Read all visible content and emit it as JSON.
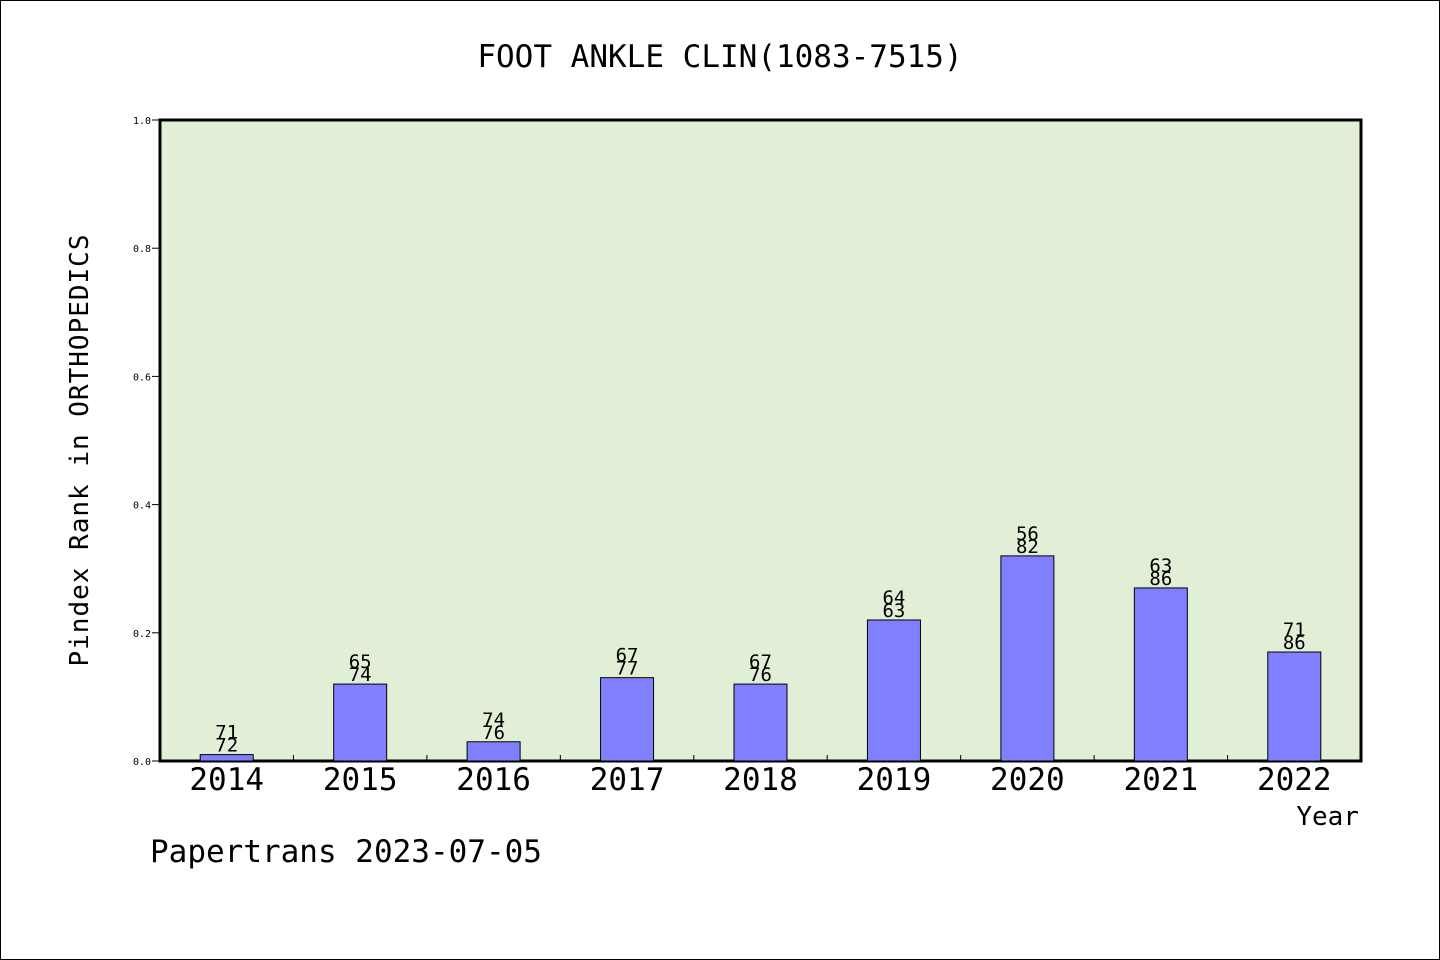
{
  "chart_data": {
    "type": "bar",
    "title": "FOOT ANKLE CLIN(1083-7515)",
    "xlabel": "Year",
    "ylabel": "Pindex Rank in ORTHOPEDICS",
    "categories": [
      "2014",
      "2015",
      "2016",
      "2017",
      "2018",
      "2019",
      "2020",
      "2021",
      "2022"
    ],
    "values": [
      0.01,
      0.12,
      0.03,
      0.13,
      0.12,
      0.22,
      0.32,
      0.27,
      0.17
    ],
    "bar_labels_top": [
      "71",
      "65",
      "74",
      "67",
      "67",
      "64",
      "56",
      "63",
      "71"
    ],
    "bar_labels_bottom": [
      "72",
      "74",
      "76",
      "77",
      "76",
      "63",
      "82",
      "86",
      "86"
    ],
    "ylim": [
      0,
      1.0
    ],
    "yticks": [
      "0.0",
      "0.2",
      "0.4",
      "0.6",
      "0.8",
      "1.0"
    ],
    "grid": false,
    "colors": {
      "plot_bg": "#e2efd7",
      "bar": "#8080ff",
      "bar_edge": "#000000"
    }
  },
  "footer": {
    "text": "Papertrans 2023-07-05"
  }
}
